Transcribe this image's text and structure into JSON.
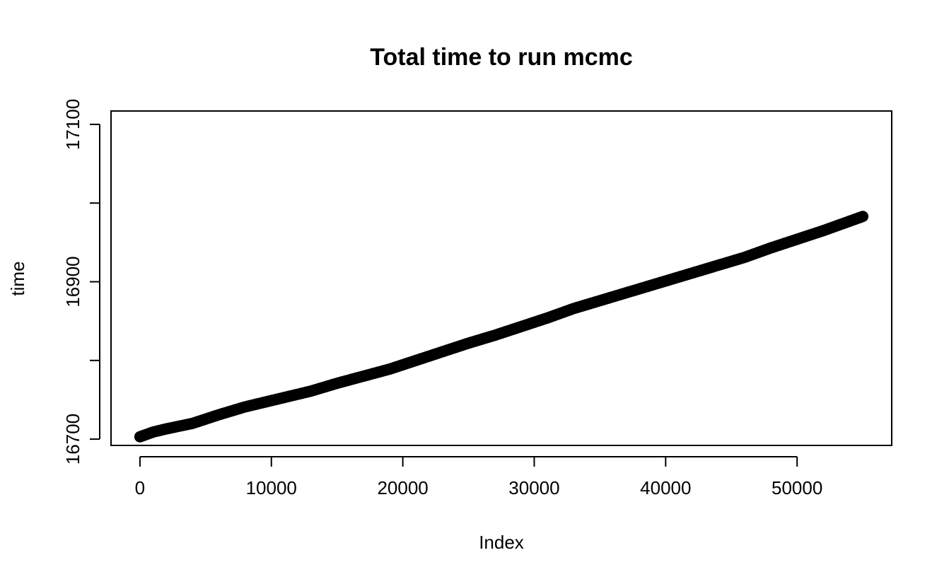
{
  "chart_data": {
    "type": "scatter",
    "title": "Total time to run mcmc",
    "xlabel": "Index",
    "ylabel": "time",
    "xlim": [
      -2200,
      57200
    ],
    "ylim": [
      16692,
      17117
    ],
    "x_ticks": [
      0,
      10000,
      20000,
      30000,
      40000,
      50000
    ],
    "y_ticks": [
      16700,
      16800,
      16900,
      17000,
      17100
    ],
    "y_tick_labels": [
      "16700",
      "",
      "16900",
      "",
      "17100"
    ],
    "grid": false,
    "series": [
      {
        "color": "#000000",
        "points": [
          [
            0,
            16703
          ],
          [
            1000,
            16709
          ],
          [
            2000,
            16713
          ],
          [
            4000,
            16720
          ],
          [
            6000,
            16731
          ],
          [
            8000,
            16741
          ],
          [
            10000,
            16749
          ],
          [
            13000,
            16761
          ],
          [
            15000,
            16771
          ],
          [
            17000,
            16780
          ],
          [
            19000,
            16789
          ],
          [
            21000,
            16800
          ],
          [
            23000,
            16811
          ],
          [
            25000,
            16822
          ],
          [
            27000,
            16832
          ],
          [
            29000,
            16843
          ],
          [
            31000,
            16854
          ],
          [
            33000,
            16866
          ],
          [
            35000,
            16876
          ],
          [
            37000,
            16886
          ],
          [
            39000,
            16896
          ],
          [
            41000,
            16906
          ],
          [
            43000,
            16916
          ],
          [
            45000,
            16926
          ],
          [
            46000,
            16931
          ],
          [
            48000,
            16943
          ],
          [
            50000,
            16954
          ],
          [
            52000,
            16965
          ],
          [
            54000,
            16977
          ],
          [
            55000,
            16983
          ]
        ]
      }
    ]
  }
}
